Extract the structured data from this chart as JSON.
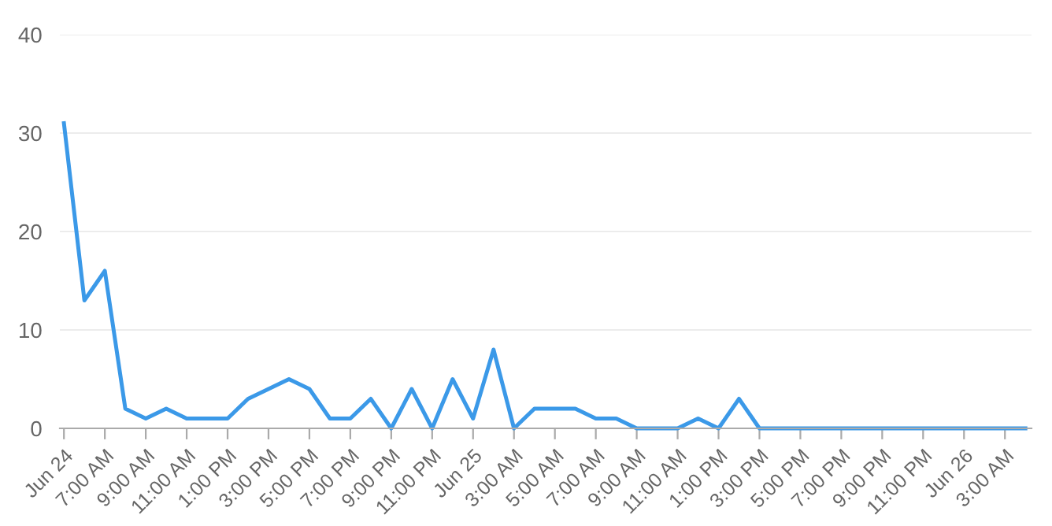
{
  "chart_data": {
    "type": "line",
    "categories": [
      "Jun 24",
      null,
      "7:00 AM",
      null,
      "9:00 AM",
      null,
      "11:00 AM",
      null,
      "1:00 PM",
      null,
      "3:00 PM",
      null,
      "5:00 PM",
      null,
      "7:00 PM",
      null,
      "9:00 PM",
      null,
      "11:00 PM",
      null,
      "Jun 25",
      null,
      "3:00 AM",
      null,
      "5:00 AM",
      null,
      "7:00 AM",
      null,
      "9:00 AM",
      null,
      "11:00 AM",
      null,
      "1:00 PM",
      null,
      "3:00 PM",
      null,
      "5:00 PM",
      null,
      "7:00 PM",
      null,
      "9:00 PM",
      null,
      "11:00 PM",
      null,
      "Jun 26",
      null,
      "3:00 AM",
      null
    ],
    "series": [
      {
        "color": "#3b99e8",
        "values": [
          31,
          13,
          16,
          2,
          1,
          2,
          1,
          1,
          1,
          3,
          4,
          5,
          4,
          1,
          1,
          3,
          0,
          4,
          0,
          5,
          1,
          8,
          0,
          2,
          2,
          2,
          1,
          1,
          0,
          0,
          0,
          1,
          0,
          3,
          0,
          0,
          0,
          0,
          0,
          0,
          0,
          0,
          0,
          0,
          0,
          0,
          0,
          0
        ]
      }
    ],
    "ylim": [
      0,
      40
    ],
    "yticks": [
      0,
      10,
      20,
      30,
      40
    ],
    "grid": "y",
    "marker": "none",
    "line_style": "solid"
  }
}
